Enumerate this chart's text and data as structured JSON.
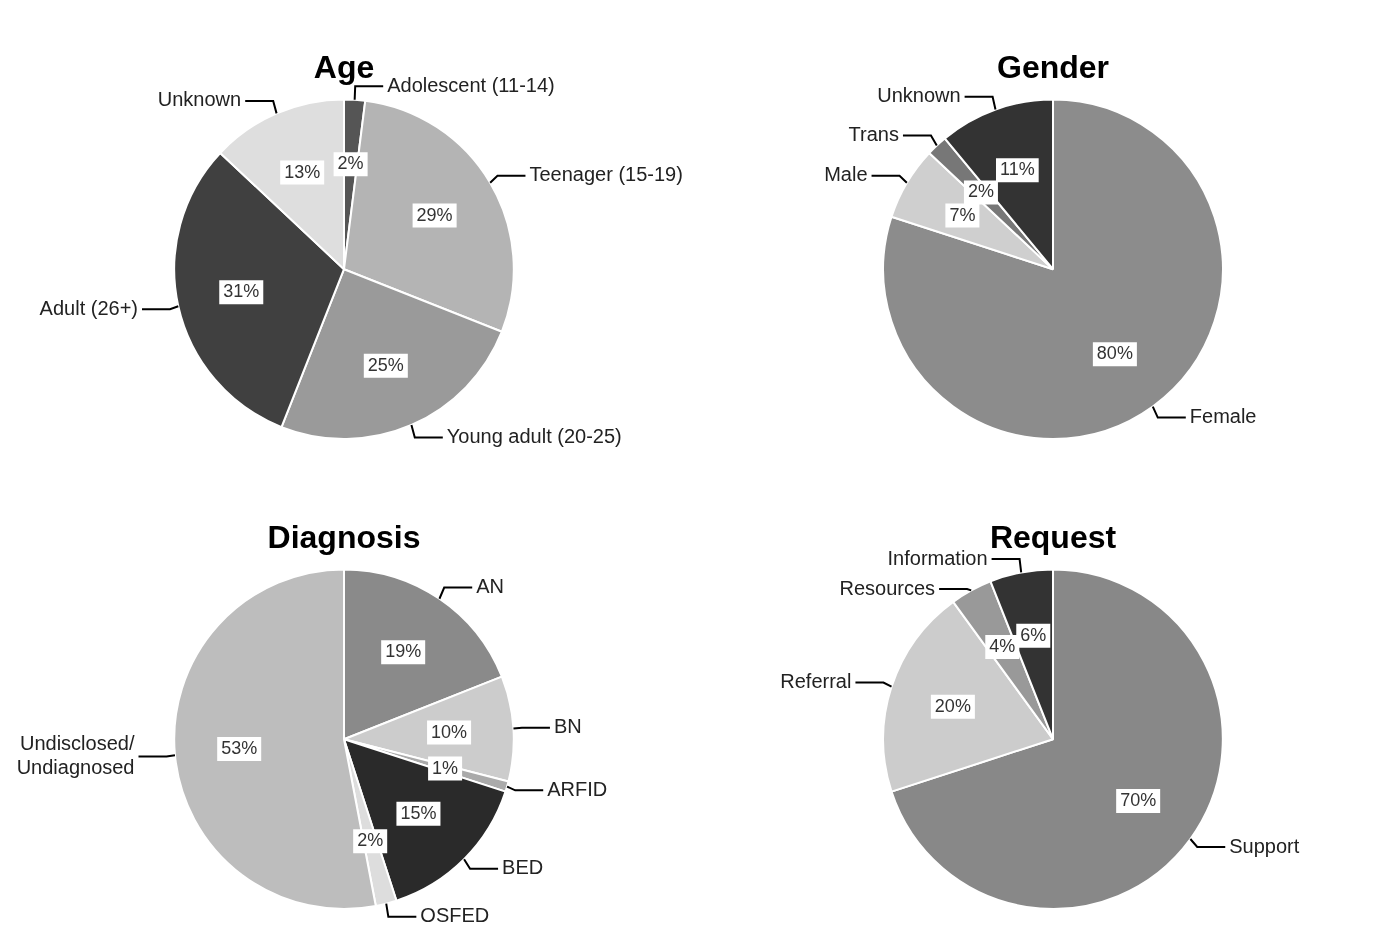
{
  "chart_data": [
    {
      "type": "pie",
      "title": "Age",
      "categories": [
        "Adolescent (11-14)",
        "Teenager (15-19)",
        "Young adult (20-25)",
        "Adult (26+)",
        "Unknown"
      ],
      "values": [
        2,
        29,
        25,
        31,
        13
      ],
      "value_labels": [
        "2%",
        "29%",
        "25%",
        "31%",
        "13%"
      ],
      "colors": [
        "#555555",
        "#b4b4b4",
        "#9a9a9a",
        "#404040",
        "#dedede"
      ]
    },
    {
      "type": "pie",
      "title": "Gender",
      "categories": [
        "Female",
        "Male",
        "Trans",
        "Unknown"
      ],
      "values": [
        80,
        7,
        2,
        11
      ],
      "value_labels": [
        "80%",
        "7%",
        "2%",
        "11%"
      ],
      "colors": [
        "#8c8c8c",
        "#cfcfcf",
        "#777777",
        "#333333"
      ]
    },
    {
      "type": "pie",
      "title": "Diagnosis",
      "categories": [
        "AN",
        "BN",
        "ARFID",
        "BED",
        "OSFED",
        "Undisclosed/\nUndiagnosed"
      ],
      "values": [
        19,
        10,
        1,
        15,
        2,
        53
      ],
      "value_labels": [
        "19%",
        "10%",
        "1%",
        "15%",
        "2%",
        "53%"
      ],
      "colors": [
        "#8a8a8a",
        "#cccccc",
        "#aaaaaa",
        "#2a2a2a",
        "#dddddd",
        "#bdbdbd"
      ]
    },
    {
      "type": "pie",
      "title": "Request",
      "categories": [
        "Support",
        "Referral",
        "Resources",
        "Information"
      ],
      "values": [
        70,
        20,
        4,
        6
      ],
      "value_labels": [
        "70%",
        "20%",
        "4%",
        "6%"
      ],
      "colors": [
        "#888888",
        "#cccccc",
        "#999999",
        "#333333"
      ]
    }
  ]
}
